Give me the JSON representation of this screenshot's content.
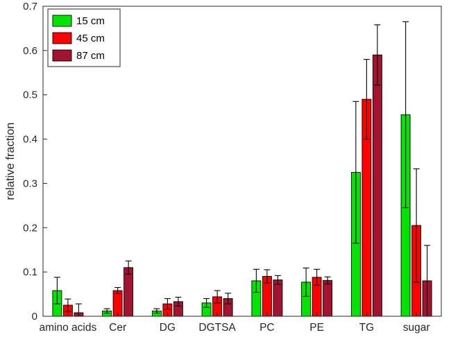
{
  "figure": {
    "background": "#ffffff",
    "axis_color": "#262626"
  },
  "legend": {
    "position": "top-left",
    "entries": [
      {
        "label": "15 cm",
        "color": "#00e400"
      },
      {
        "label": "45 cm",
        "color": "#ff0000"
      },
      {
        "label": "87 cm",
        "color": "#a2142f"
      }
    ]
  },
  "chart_data": {
    "type": "bar",
    "title": "",
    "xlabel": "",
    "ylabel": "relative fraction",
    "ylim": [
      0,
      0.7
    ],
    "yticks": [
      0,
      0.1,
      0.2,
      0.3,
      0.4,
      0.5,
      0.6,
      0.7
    ],
    "grid": false,
    "legend_position": "top-left",
    "error_bars": true,
    "categories": [
      "amino acids",
      "Cer",
      "DG",
      "DGTSA",
      "PC",
      "PE",
      "TG",
      "sugar"
    ],
    "series": [
      {
        "name": "15 cm",
        "color": "#00e400",
        "values": [
          0.058,
          0.012,
          0.012,
          0.03,
          0.08,
          0.077,
          0.325,
          0.455
        ],
        "errors": [
          0.03,
          0.005,
          0.005,
          0.01,
          0.026,
          0.032,
          0.16,
          0.21
        ]
      },
      {
        "name": "45 cm",
        "color": "#ff0000",
        "values": [
          0.025,
          0.058,
          0.028,
          0.044,
          0.09,
          0.088,
          0.49,
          0.205
        ],
        "errors": [
          0.014,
          0.007,
          0.012,
          0.014,
          0.015,
          0.018,
          0.09,
          0.128
        ]
      },
      {
        "name": "87 cm",
        "color": "#a2142f",
        "values": [
          0.008,
          0.11,
          0.033,
          0.04,
          0.082,
          0.081,
          0.59,
          0.08
        ],
        "errors": [
          0.02,
          0.015,
          0.01,
          0.012,
          0.01,
          0.008,
          0.068,
          0.08
        ]
      }
    ]
  }
}
